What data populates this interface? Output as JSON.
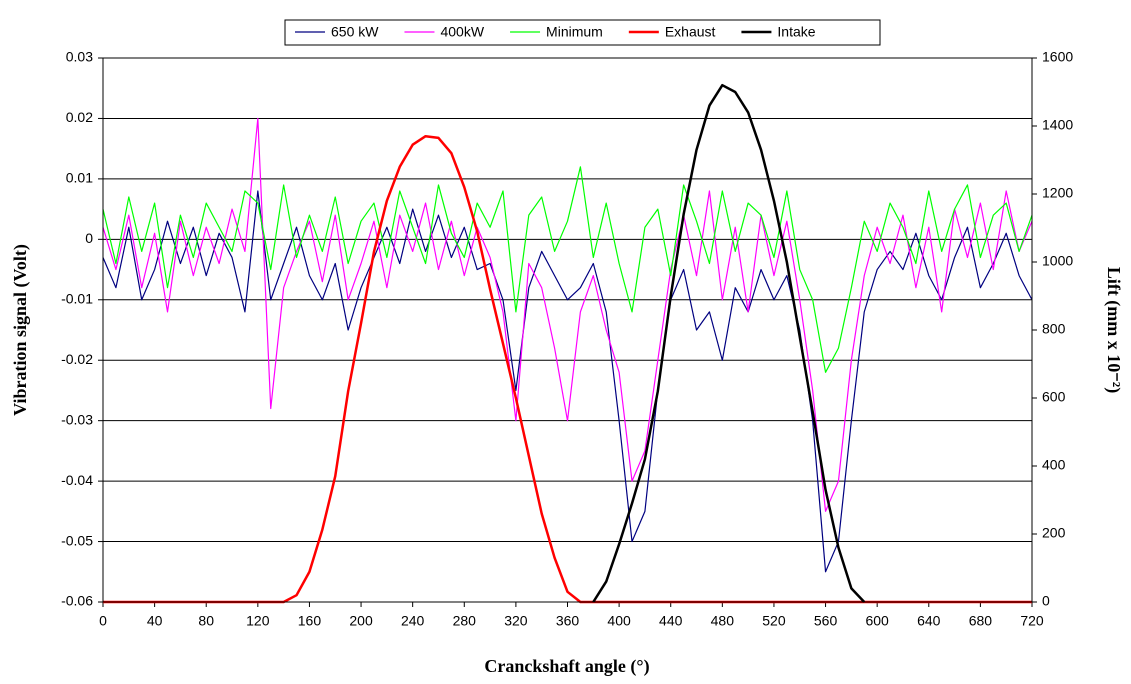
{
  "chart_data": {
    "type": "line",
    "xlabel": "Cranckshaft angle (°)",
    "ylabel": "Vibration signal (Volt)",
    "y2label": "Lift (mm x 10⁻²)",
    "legend": "top",
    "grid": true,
    "x": [
      0,
      10,
      20,
      30,
      40,
      50,
      60,
      70,
      80,
      90,
      100,
      110,
      120,
      130,
      140,
      150,
      160,
      170,
      180,
      190,
      200,
      210,
      220,
      230,
      240,
      250,
      260,
      270,
      280,
      290,
      300,
      310,
      320,
      330,
      340,
      350,
      360,
      370,
      380,
      390,
      400,
      410,
      420,
      430,
      440,
      450,
      460,
      470,
      480,
      490,
      500,
      510,
      520,
      530,
      540,
      550,
      560,
      570,
      580,
      590,
      600,
      610,
      620,
      630,
      640,
      650,
      660,
      670,
      680,
      690,
      700,
      710,
      720
    ],
    "xlim": [
      0,
      720
    ],
    "xticks": [
      0,
      40,
      80,
      120,
      160,
      200,
      240,
      280,
      320,
      360,
      400,
      440,
      480,
      520,
      560,
      600,
      640,
      680,
      720
    ],
    "ylim": [
      -0.06,
      0.03
    ],
    "yticks": [
      -0.06,
      -0.05,
      -0.04,
      -0.03,
      -0.02,
      -0.01,
      0,
      0.01,
      0.02,
      0.03
    ],
    "y2lim": [
      0,
      1600
    ],
    "y2ticks": [
      0,
      200,
      400,
      600,
      800,
      1000,
      1200,
      1400,
      1600
    ],
    "series": [
      {
        "name": "650 kW",
        "color": "#000080",
        "width": 1.2,
        "values": [
          -0.003,
          -0.008,
          0.002,
          -0.01,
          -0.005,
          0.003,
          -0.004,
          0.002,
          -0.006,
          0.001,
          -0.003,
          -0.012,
          0.008,
          -0.01,
          -0.004,
          0.002,
          -0.006,
          -0.01,
          -0.004,
          -0.015,
          -0.008,
          -0.003,
          0.002,
          -0.004,
          0.005,
          -0.002,
          0.004,
          -0.003,
          0.002,
          -0.005,
          -0.004,
          -0.01,
          -0.025,
          -0.008,
          -0.002,
          -0.006,
          -0.01,
          -0.008,
          -0.004,
          -0.012,
          -0.03,
          -0.05,
          -0.045,
          -0.025,
          -0.01,
          -0.005,
          -0.015,
          -0.012,
          -0.02,
          -0.008,
          -0.012,
          -0.005,
          -0.01,
          -0.006,
          -0.015,
          -0.03,
          -0.055,
          -0.05,
          -0.03,
          -0.012,
          -0.005,
          -0.002,
          -0.005,
          0.001,
          -0.006,
          -0.01,
          -0.003,
          0.002,
          -0.008,
          -0.004,
          0.001,
          -0.006,
          -0.01
        ]
      },
      {
        "name": "400kW",
        "color": "#ff00ff",
        "width": 1.2,
        "values": [
          0.002,
          -0.005,
          0.004,
          -0.008,
          0.001,
          -0.012,
          0.003,
          -0.006,
          0.002,
          -0.004,
          0.005,
          -0.002,
          0.02,
          -0.028,
          -0.008,
          -0.002,
          0.003,
          -0.007,
          0.004,
          -0.01,
          -0.004,
          0.003,
          -0.008,
          0.004,
          -0.002,
          0.006,
          -0.005,
          0.003,
          -0.006,
          0.002,
          -0.003,
          -0.012,
          -0.03,
          -0.004,
          -0.008,
          -0.018,
          -0.03,
          -0.012,
          -0.006,
          -0.015,
          -0.022,
          -0.04,
          -0.035,
          -0.02,
          -0.005,
          0.004,
          -0.006,
          0.008,
          -0.01,
          0.002,
          -0.012,
          0.004,
          -0.006,
          0.003,
          -0.01,
          -0.025,
          -0.045,
          -0.04,
          -0.02,
          -0.006,
          0.002,
          -0.004,
          0.004,
          -0.008,
          0.002,
          -0.012,
          0.005,
          -0.003,
          0.006,
          -0.005,
          0.008,
          -0.002,
          0.003
        ]
      },
      {
        "name": "Minimum",
        "color": "#00ff00",
        "width": 1.2,
        "values": [
          0.005,
          -0.004,
          0.007,
          -0.002,
          0.006,
          -0.008,
          0.004,
          -0.003,
          0.006,
          0.002,
          -0.002,
          0.008,
          0.006,
          -0.005,
          0.009,
          -0.003,
          0.004,
          -0.002,
          0.007,
          -0.004,
          0.003,
          0.006,
          -0.003,
          0.008,
          0.002,
          -0.004,
          0.009,
          0.001,
          -0.003,
          0.006,
          0.002,
          0.008,
          -0.012,
          0.004,
          0.007,
          -0.002,
          0.003,
          0.012,
          -0.003,
          0.006,
          -0.004,
          -0.012,
          0.002,
          0.005,
          -0.006,
          0.009,
          0.003,
          -0.004,
          0.008,
          -0.002,
          0.006,
          0.004,
          -0.003,
          0.008,
          -0.005,
          -0.01,
          -0.022,
          -0.018,
          -0.008,
          0.003,
          -0.002,
          0.006,
          0.002,
          -0.004,
          0.008,
          -0.002,
          0.005,
          0.009,
          -0.003,
          0.004,
          0.006,
          -0.002,
          0.004
        ]
      },
      {
        "name": "Exhaust",
        "color": "#ff0000",
        "width": 2.5,
        "axis": "y2",
        "values": [
          0,
          0,
          0,
          0,
          0,
          0,
          0,
          0,
          0,
          0,
          0,
          0,
          0,
          0,
          0,
          20,
          89,
          213,
          370,
          620,
          820,
          1030,
          1180,
          1280,
          1345,
          1370,
          1365,
          1320,
          1220,
          1090,
          920,
          760,
          600,
          430,
          260,
          130,
          30,
          0,
          0,
          0,
          0,
          0,
          0,
          0,
          0,
          0,
          0,
          0,
          0,
          0,
          0,
          0,
          0,
          0,
          0,
          0,
          0,
          0,
          0,
          0,
          0,
          0,
          0,
          0,
          0,
          0,
          0,
          0,
          0,
          0,
          0,
          0,
          0
        ]
      },
      {
        "name": "Intake",
        "color": "#000000",
        "width": 2.5,
        "axis": "y2",
        "values": [
          null,
          null,
          null,
          null,
          null,
          null,
          null,
          null,
          null,
          null,
          null,
          null,
          null,
          null,
          null,
          null,
          null,
          null,
          null,
          null,
          null,
          null,
          null,
          null,
          null,
          null,
          null,
          null,
          null,
          null,
          null,
          null,
          null,
          null,
          null,
          null,
          null,
          null,
          0,
          60,
          170,
          290,
          420,
          620,
          900,
          1140,
          1330,
          1460,
          1520,
          1500,
          1440,
          1330,
          1180,
          1000,
          780,
          560,
          330,
          160,
          40,
          0,
          null,
          null,
          null,
          null,
          null,
          null,
          null,
          null,
          null,
          null,
          null,
          null,
          null
        ]
      }
    ]
  }
}
